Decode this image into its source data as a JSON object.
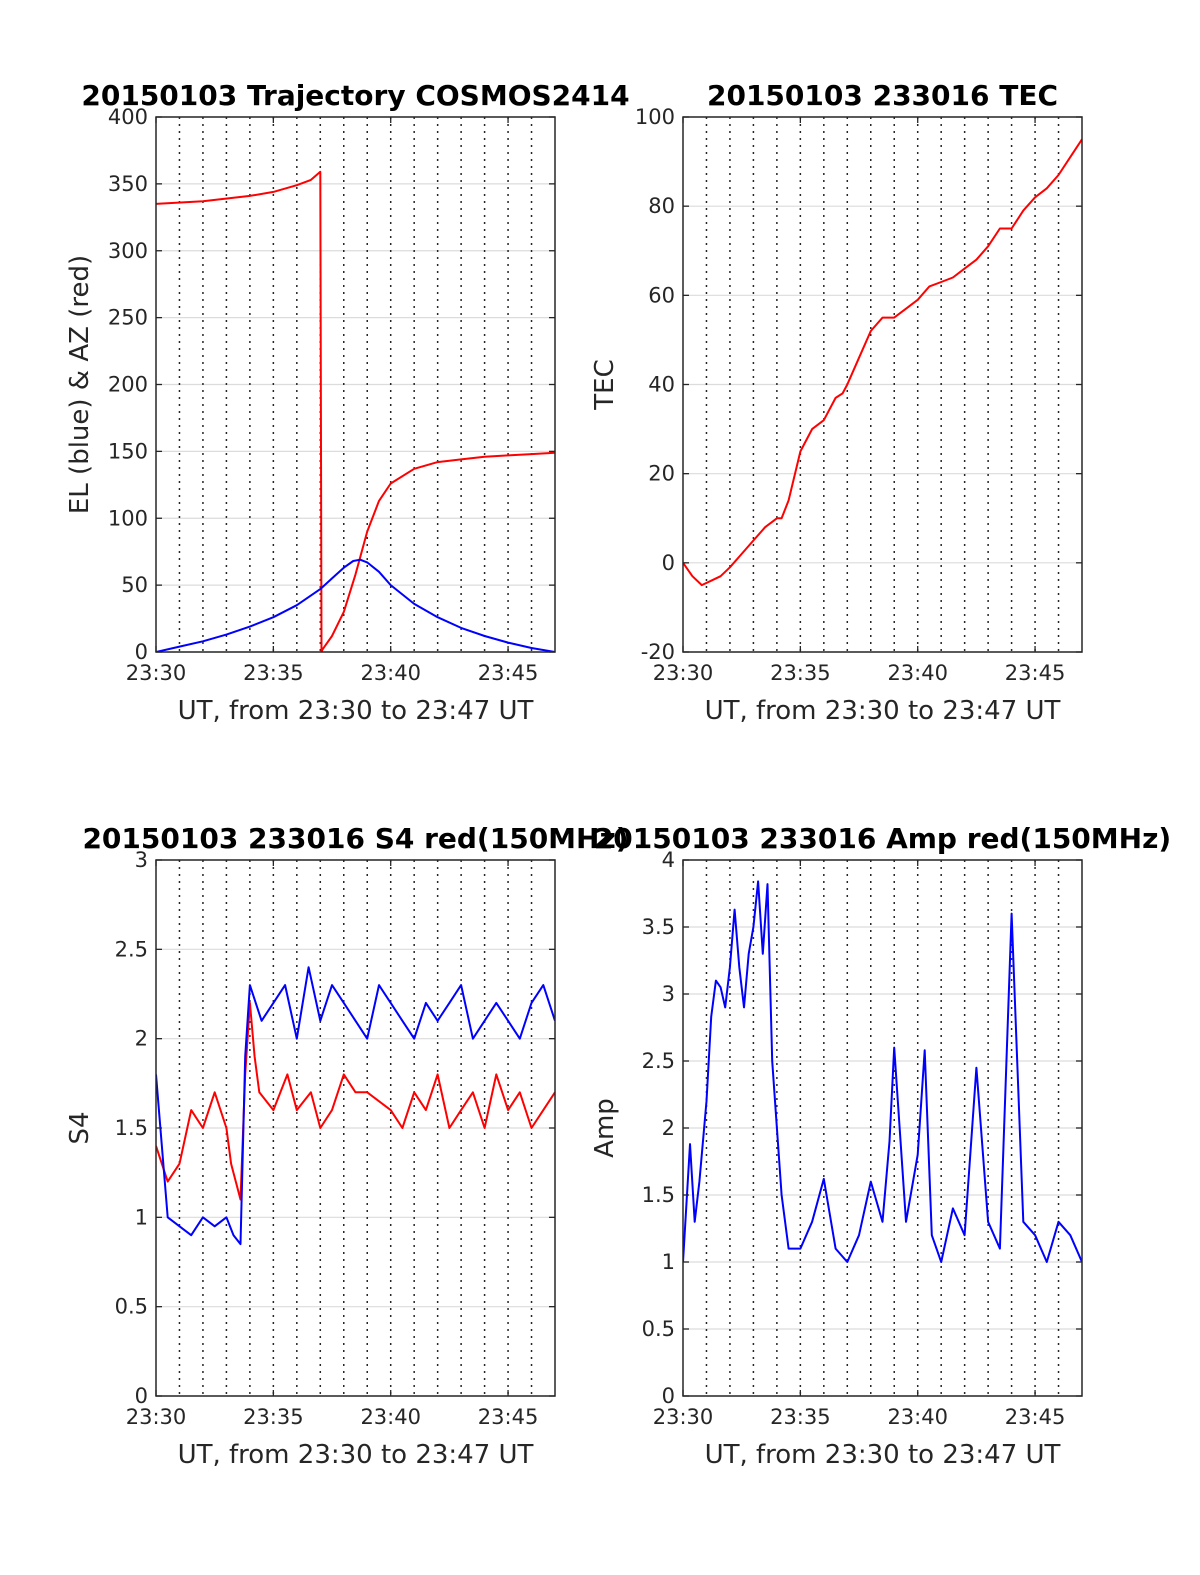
{
  "chart_data": [
    {
      "type": "line",
      "title": "20150103 Trajectory COSMOS2414",
      "xlabel": "UT, from 23:30 to 23:47 UT",
      "ylabel": "EL (blue) & AZ (red)",
      "xlim": [
        0,
        17
      ],
      "ylim": [
        0,
        400
      ],
      "xticks": [
        0,
        5,
        10,
        15
      ],
      "xtick_labels": [
        "23:30",
        "23:35",
        "23:40",
        "23:45"
      ],
      "yticks": [
        0,
        50,
        100,
        150,
        200,
        250,
        300,
        350,
        400
      ],
      "ytick_labels": [
        "0",
        "50",
        "100",
        "150",
        "200",
        "250",
        "300",
        "350",
        "400"
      ],
      "vgrid": [
        1,
        2,
        3,
        4,
        5,
        6,
        7,
        8,
        9,
        10,
        11,
        12,
        13,
        14,
        15,
        16
      ],
      "series": [
        {
          "color": "#ff0000",
          "x": [
            0,
            2,
            4,
            5,
            6,
            6.6,
            7.0,
            7.05,
            7.1,
            7.5,
            8.0,
            8.5,
            9.0,
            9.5,
            10.0,
            11.0,
            12.0,
            13.0,
            14.0,
            15.0,
            16.0,
            17.0
          ],
          "y": [
            335,
            337,
            341,
            344,
            349,
            353,
            359,
            0,
            2,
            12,
            30,
            58,
            90,
            113,
            126,
            137,
            142,
            144,
            146,
            147,
            148,
            149
          ]
        },
        {
          "color": "#0000ff",
          "x": [
            0,
            1,
            2,
            3,
            4,
            5,
            6,
            7,
            7.5,
            8.0,
            8.4,
            8.7,
            9.0,
            9.5,
            10,
            11,
            12,
            13,
            14,
            15,
            16,
            17
          ],
          "y": [
            0,
            4,
            8,
            13,
            19,
            26,
            35,
            47,
            55,
            63,
            68,
            69,
            67,
            60,
            50,
            36,
            26,
            18,
            12,
            7,
            3,
            0
          ]
        }
      ]
    },
    {
      "type": "line",
      "title": "20150103 233016 TEC",
      "xlabel": "UT, from 23:30 to 23:47 UT",
      "ylabel": "TEC",
      "xlim": [
        0,
        17
      ],
      "ylim": [
        -20,
        100
      ],
      "xticks": [
        0,
        5,
        10,
        15
      ],
      "xtick_labels": [
        "23:30",
        "23:35",
        "23:40",
        "23:45"
      ],
      "yticks": [
        -20,
        0,
        20,
        40,
        60,
        80,
        100
      ],
      "ytick_labels": [
        "-20",
        "0",
        "20",
        "40",
        "60",
        "80",
        "100"
      ],
      "vgrid": [
        1,
        2,
        3,
        4,
        5,
        6,
        7,
        8,
        9,
        10,
        11,
        12,
        13,
        14,
        15,
        16
      ],
      "series": [
        {
          "color": "#ff0000",
          "x": [
            0,
            0.4,
            0.8,
            1.2,
            1.6,
            2.0,
            2.5,
            3.0,
            3.5,
            4.0,
            4.2,
            4.5,
            5.0,
            5.5,
            6.0,
            6.5,
            6.8,
            7.0,
            7.5,
            8.0,
            8.5,
            9.0,
            9.5,
            10.0,
            10.5,
            11.0,
            11.5,
            12.0,
            12.5,
            13.0,
            13.5,
            14.0,
            14.5,
            15.0,
            15.5,
            16.0,
            16.5,
            17.0
          ],
          "y": [
            0,
            -3,
            -5,
            -4,
            -3,
            -1,
            2,
            5,
            8,
            10,
            10,
            14,
            25,
            30,
            32,
            37,
            38,
            40,
            46,
            52,
            55,
            55,
            57,
            59,
            62,
            63,
            64,
            66,
            68,
            71,
            75,
            75,
            79,
            82,
            84,
            87,
            91,
            95
          ]
        }
      ]
    },
    {
      "type": "line",
      "title": "20150103 233016 S4 red(150MHz)",
      "xlabel": "UT, from 23:30 to 23:47 UT",
      "ylabel": "S4",
      "xlim": [
        0,
        17
      ],
      "ylim": [
        0,
        3
      ],
      "xticks": [
        0,
        5,
        10,
        15
      ],
      "xtick_labels": [
        "23:30",
        "23:35",
        "23:40",
        "23:45"
      ],
      "yticks": [
        0,
        0.5,
        1,
        1.5,
        2,
        2.5,
        3
      ],
      "ytick_labels": [
        "0",
        "0.5",
        "1",
        "1.5",
        "2",
        "2.5",
        "3"
      ],
      "vgrid": [
        1,
        2,
        3,
        4,
        5,
        6,
        7,
        8,
        9,
        10,
        11,
        12,
        13,
        14,
        15,
        16
      ],
      "series": [
        {
          "color": "#ff0000",
          "x": [
            0.0,
            0.5,
            1.0,
            1.5,
            2.0,
            2.5,
            3.0,
            3.2,
            3.4,
            3.6,
            3.8,
            4.0,
            4.2,
            4.4,
            5.0,
            5.6,
            6.0,
            6.6,
            7.0,
            7.5,
            8.0,
            8.5,
            9.0,
            10.0,
            10.5,
            11.0,
            11.5,
            12.0,
            12.5,
            13.0,
            13.5,
            14.0,
            14.5,
            15.0,
            15.5,
            16.0,
            16.5,
            17.0
          ],
          "y": [
            1.4,
            1.2,
            1.3,
            1.6,
            1.5,
            1.7,
            1.5,
            1.3,
            1.2,
            1.1,
            1.8,
            2.2,
            1.9,
            1.7,
            1.6,
            1.8,
            1.6,
            1.7,
            1.5,
            1.6,
            1.8,
            1.7,
            1.7,
            1.6,
            1.5,
            1.7,
            1.6,
            1.8,
            1.5,
            1.6,
            1.7,
            1.5,
            1.8,
            1.6,
            1.7,
            1.5,
            1.6,
            1.7
          ]
        },
        {
          "color": "#0000ff",
          "x": [
            0.0,
            0.5,
            1.0,
            1.5,
            2.0,
            2.5,
            3.0,
            3.3,
            3.6,
            3.8,
            4.0,
            4.5,
            5.0,
            5.5,
            6.0,
            6.5,
            7.0,
            7.5,
            8.0,
            8.5,
            9.0,
            9.5,
            10.0,
            10.5,
            11.0,
            11.5,
            12.0,
            12.5,
            13.0,
            13.5,
            14.0,
            14.5,
            15.0,
            15.5,
            16.0,
            16.5,
            17.0
          ],
          "y": [
            1.8,
            1.0,
            0.95,
            0.9,
            1.0,
            0.95,
            1.0,
            0.9,
            0.85,
            1.9,
            2.3,
            2.1,
            2.2,
            2.3,
            2.0,
            2.4,
            2.1,
            2.3,
            2.2,
            2.1,
            2.0,
            2.3,
            2.2,
            2.1,
            2.0,
            2.2,
            2.1,
            2.2,
            2.3,
            2.0,
            2.1,
            2.2,
            2.1,
            2.0,
            2.2,
            2.3,
            2.1
          ]
        }
      ]
    },
    {
      "type": "line",
      "title": "20150103 233016 Amp red(150MHz)",
      "xlabel": "UT, from 23:30 to 23:47 UT",
      "ylabel": "Amp",
      "xlim": [
        0,
        17
      ],
      "ylim": [
        0,
        4
      ],
      "xticks": [
        0,
        5,
        10,
        15
      ],
      "xtick_labels": [
        "23:30",
        "23:35",
        "23:40",
        "23:45"
      ],
      "yticks": [
        0,
        0.5,
        1,
        1.5,
        2,
        2.5,
        3,
        3.5,
        4
      ],
      "ytick_labels": [
        "0",
        "0.5",
        "1",
        "1.5",
        "2",
        "2.5",
        "3",
        "3.5",
        "4"
      ],
      "vgrid": [
        1,
        2,
        3,
        4,
        5,
        6,
        7,
        8,
        9,
        10,
        11,
        12,
        13,
        14,
        15,
        16
      ],
      "series": [
        {
          "color": "#0000ff",
          "x": [
            0.0,
            0.3,
            0.5,
            0.7,
            1.0,
            1.2,
            1.4,
            1.6,
            1.8,
            2.0,
            2.2,
            2.4,
            2.6,
            2.8,
            3.0,
            3.2,
            3.4,
            3.6,
            3.8,
            4.0,
            4.2,
            4.5,
            5.0,
            5.5,
            6.0,
            6.5,
            7.0,
            7.5,
            8.0,
            8.5,
            8.8,
            9.0,
            9.5,
            10.0,
            10.3,
            10.6,
            11.0,
            11.5,
            12.0,
            12.5,
            13.0,
            13.5,
            14.0,
            14.5,
            15.0,
            15.5,
            16.0,
            16.5,
            17.0
          ],
          "y": [
            1.0,
            1.88,
            1.3,
            1.6,
            2.2,
            2.83,
            3.1,
            3.05,
            2.9,
            3.2,
            3.63,
            3.2,
            2.9,
            3.3,
            3.5,
            3.84,
            3.3,
            3.82,
            2.5,
            2.0,
            1.5,
            1.1,
            1.1,
            1.3,
            1.62,
            1.1,
            1.0,
            1.2,
            1.6,
            1.3,
            1.9,
            2.6,
            1.3,
            1.8,
            2.58,
            1.2,
            1.0,
            1.4,
            1.2,
            2.45,
            1.3,
            1.1,
            3.6,
            1.3,
            1.2,
            1.0,
            1.3,
            1.2,
            1.0
          ]
        }
      ]
    }
  ]
}
